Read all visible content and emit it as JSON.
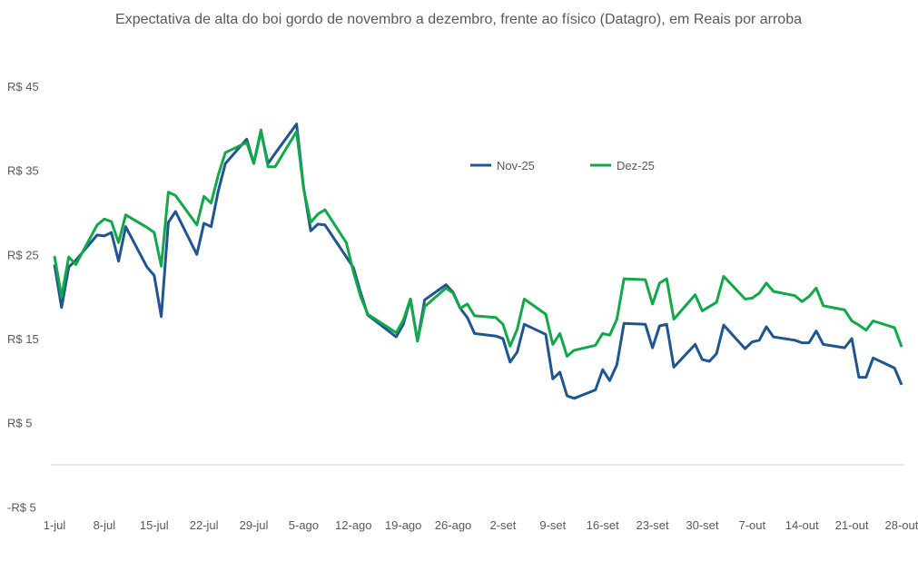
{
  "chart_data": {
    "type": "line",
    "title": "Expectativa de alta do boi gordo de novembro a dezembro, frente ao físico (Datagro), em Reais por arroba",
    "xlabel": "",
    "ylabel": "",
    "ylim": [
      -5,
      45
    ],
    "y_ticks": [
      "-R$ 5",
      "R$ 5",
      "R$ 15",
      "R$ 25",
      "R$ 35",
      "R$ 45"
    ],
    "y_tick_values": [
      -5,
      5,
      15,
      25,
      35,
      45
    ],
    "x_ticks": [
      "1-jul",
      "8-jul",
      "15-jul",
      "22-jul",
      "29-jul",
      "5-ago",
      "12-ago",
      "19-ago",
      "26-ago",
      "2-set",
      "9-set",
      "16-set",
      "23-set",
      "30-set",
      "7-out",
      "14-out",
      "21-out",
      "28-out"
    ],
    "grid": false,
    "legend_position": "top-center",
    "x": [
      "1-jul",
      "2-jul",
      "3-jul",
      "4-jul",
      "7-jul",
      "8-jul",
      "9-jul",
      "10-jul",
      "11-jul",
      "14-jul",
      "15-jul",
      "16-jul",
      "17-jul",
      "18-jul",
      "21-jul",
      "22-jul",
      "23-jul",
      "24-jul",
      "25-jul",
      "28-jul",
      "29-jul",
      "30-jul",
      "31-jul",
      "1-ago",
      "4-ago",
      "5-ago",
      "6-ago",
      "7-ago",
      "8-ago",
      "11-ago",
      "12-ago",
      "13-ago",
      "14-ago",
      "18-ago",
      "19-ago",
      "20-ago",
      "21-ago",
      "22-ago",
      "25-ago",
      "26-ago",
      "27-ago",
      "28-ago",
      "29-ago",
      "1-set",
      "2-set",
      "3-set",
      "4-set",
      "5-set",
      "8-set",
      "9-set",
      "10-set",
      "11-set",
      "12-set",
      "15-set",
      "16-set",
      "17-set",
      "18-set",
      "19-set",
      "22-set",
      "23-set",
      "24-set",
      "25-set",
      "26-set",
      "29-set",
      "30-set",
      "1-out",
      "2-out",
      "3-out",
      "6-out",
      "7-out",
      "8-out",
      "9-out",
      "10-out",
      "13-out",
      "14-out",
      "15-out",
      "16-out",
      "17-out",
      "20-out",
      "21-out",
      "22-out",
      "23-out",
      "24-out",
      "27-out",
      "28-out"
    ],
    "series": [
      {
        "name": "Nov-25",
        "color": "#1f5591",
        "values": [
          23.8,
          18.7,
          23.5,
          24.3,
          27.3,
          27.2,
          27.6,
          24.2,
          28.3,
          23.5,
          22.5,
          17.6,
          28.8,
          30.1,
          25.0,
          28.7,
          28.3,
          32.5,
          35.8,
          38.7,
          35.8,
          39.6,
          35.8,
          37.0,
          40.5,
          32.9,
          27.8,
          28.6,
          28.5,
          24.7,
          23.4,
          20.5,
          17.8,
          15.2,
          16.7,
          19.7,
          14.7,
          19.6,
          21.4,
          20.5,
          18.6,
          17.5,
          15.6,
          15.3,
          15.0,
          12.2,
          13.4,
          16.7,
          15.5,
          10.2,
          11.0,
          8.2,
          7.9,
          8.9,
          11.3,
          10.0,
          11.9,
          16.8,
          16.7,
          13.9,
          16.5,
          16.7,
          11.6,
          14.3,
          12.5,
          12.3,
          13.2,
          16.6,
          13.8,
          14.6,
          14.8,
          16.4,
          15.2,
          14.8,
          14.5,
          14.5,
          15.9,
          14.3,
          13.9,
          15.0,
          10.4,
          10.4,
          12.7,
          11.5,
          9.5
        ]
      },
      {
        "name": "Dez-25",
        "color": "#12a84a",
        "values": [
          24.8,
          20.0,
          24.7,
          23.8,
          28.5,
          29.2,
          28.9,
          26.4,
          29.7,
          28.2,
          27.6,
          23.6,
          32.4,
          32.0,
          28.5,
          31.9,
          31.1,
          34.4,
          37.1,
          38.3,
          35.8,
          39.8,
          35.4,
          35.4,
          39.6,
          32.8,
          28.8,
          29.8,
          30.3,
          26.4,
          22.9,
          20.0,
          17.9,
          15.7,
          17.2,
          19.7,
          14.7,
          18.8,
          21.0,
          20.4,
          18.6,
          19.1,
          17.7,
          17.5,
          16.7,
          14.1,
          16.1,
          19.7,
          17.9,
          14.3,
          15.6,
          12.9,
          13.6,
          14.2,
          15.6,
          15.4,
          17.3,
          22.1,
          22.0,
          19.1,
          21.6,
          22.1,
          17.3,
          20.2,
          18.3,
          18.8,
          19.3,
          22.4,
          19.7,
          19.8,
          20.4,
          21.6,
          20.6,
          20.1,
          19.4,
          20.0,
          21.0,
          18.9,
          18.4,
          17.1,
          16.6,
          16.0,
          17.1,
          16.3,
          14.0
        ]
      }
    ]
  }
}
